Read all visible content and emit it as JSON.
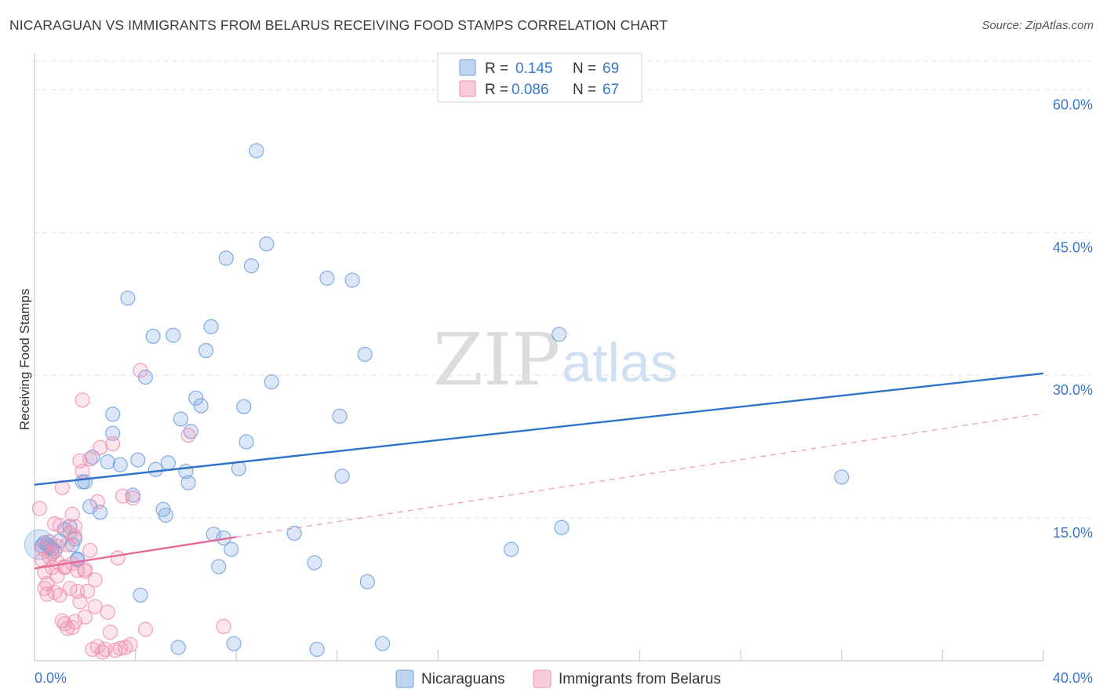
{
  "header": {
    "title": "NICARAGUAN VS IMMIGRANTS FROM BELARUS RECEIVING FOOD STAMPS CORRELATION CHART",
    "source": "Source: ZipAtlas.com"
  },
  "watermark": {
    "zip": "ZIP",
    "atlas": "atlas"
  },
  "legend": {
    "rows": [
      {
        "r_label": "R =",
        "r_value": "0.145",
        "n_label": "N =",
        "n_value": "69",
        "color": "#7ba7e0"
      },
      {
        "r_label": "R =",
        "r_value": "0.086",
        "n_label": "N =",
        "n_value": "67",
        "color": "#f08fb0"
      }
    ]
  },
  "colors": {
    "blue": "#6f9fdc",
    "pink": "#f08fb0",
    "blue_line": "#2f72cc",
    "pink_line": "#e8679a",
    "grid": "#e3e3e3",
    "tick": "#3a78c9"
  },
  "chart_data": {
    "type": "scatter",
    "title": "NICARAGUAN VS IMMIGRANTS FROM BELARUS RECEIVING FOOD STAMPS CORRELATION CHART",
    "xlabel": "",
    "ylabel": "Receiving Food Stamps",
    "xlim": [
      0,
      40
    ],
    "ylim": [
      0,
      63
    ],
    "x_ticks": [
      "0.0%",
      "40.0%"
    ],
    "y_ticks": [
      {
        "value": 15,
        "label": "15.0%"
      },
      {
        "value": 30,
        "label": "30.0%"
      },
      {
        "value": 45,
        "label": "45.0%"
      },
      {
        "value": 60,
        "label": "60.0%"
      }
    ],
    "grid": true,
    "legend_position": "top-center",
    "series": [
      {
        "name": "Nicaraguans",
        "color": "#6f9fdc",
        "trend": {
          "x": [
            0,
            40
          ],
          "y": [
            18.5,
            30.2
          ]
        },
        "points": [
          [
            0.3,
            12.1
          ],
          [
            0.5,
            12.2
          ],
          [
            0.6,
            12.0
          ],
          [
            0.8,
            11.5
          ],
          [
            0.4,
            12.4
          ],
          [
            0.7,
            11.8
          ],
          [
            1.0,
            12.6
          ],
          [
            1.2,
            13.8
          ],
          [
            1.4,
            14.1
          ],
          [
            1.6,
            12.8
          ],
          [
            1.5,
            12.2
          ],
          [
            1.7,
            10.6
          ],
          [
            2.0,
            18.8
          ],
          [
            2.2,
            16.2
          ],
          [
            2.3,
            21.4
          ],
          [
            2.6,
            15.6
          ],
          [
            2.9,
            20.9
          ],
          [
            3.1,
            25.9
          ],
          [
            3.1,
            23.9
          ],
          [
            3.4,
            20.6
          ],
          [
            3.7,
            38.1
          ],
          [
            3.9,
            17.4
          ],
          [
            4.1,
            21.1
          ],
          [
            4.4,
            29.8
          ],
          [
            4.7,
            34.1
          ],
          [
            4.8,
            20.1
          ],
          [
            5.1,
            15.9
          ],
          [
            5.2,
            15.3
          ],
          [
            5.3,
            20.8
          ],
          [
            5.5,
            34.2
          ],
          [
            5.7,
            1.4
          ],
          [
            5.8,
            25.4
          ],
          [
            6.0,
            19.9
          ],
          [
            6.1,
            18.7
          ],
          [
            6.2,
            24.1
          ],
          [
            6.4,
            27.6
          ],
          [
            6.6,
            26.8
          ],
          [
            6.8,
            32.6
          ],
          [
            7.0,
            35.1
          ],
          [
            7.1,
            13.3
          ],
          [
            7.3,
            9.9
          ],
          [
            7.5,
            12.9
          ],
          [
            7.6,
            42.3
          ],
          [
            7.8,
            11.7
          ],
          [
            7.9,
            1.8
          ],
          [
            8.1,
            20.2
          ],
          [
            8.3,
            26.7
          ],
          [
            8.4,
            23.0
          ],
          [
            8.6,
            41.5
          ],
          [
            8.8,
            53.6
          ],
          [
            9.2,
            43.8
          ],
          [
            9.4,
            29.3
          ],
          [
            10.3,
            13.4
          ],
          [
            11.1,
            10.3
          ],
          [
            11.2,
            1.2
          ],
          [
            11.6,
            40.2
          ],
          [
            12.1,
            25.7
          ],
          [
            12.2,
            19.4
          ],
          [
            12.6,
            40.0
          ],
          [
            13.1,
            32.2
          ],
          [
            13.2,
            8.3
          ],
          [
            13.8,
            1.8
          ],
          [
            18.9,
            11.7
          ],
          [
            20.8,
            34.3
          ],
          [
            20.9,
            14.0
          ],
          [
            32.0,
            19.3
          ],
          [
            1.7,
            10.7
          ],
          [
            4.2,
            6.9
          ],
          [
            1.9,
            18.8
          ]
        ]
      },
      {
        "name": "Immigrants from Belarus",
        "color": "#f08fb0",
        "trend": {
          "x": [
            0,
            8
          ],
          "y": [
            9.7,
            13.0
          ]
        },
        "trend_extended": {
          "x": [
            8,
            40
          ],
          "y": [
            13.0,
            26.0
          ]
        },
        "points": [
          [
            0.2,
            16.0
          ],
          [
            0.3,
            11.8
          ],
          [
            0.3,
            10.6
          ],
          [
            0.4,
            9.3
          ],
          [
            0.4,
            7.6
          ],
          [
            0.5,
            7.0
          ],
          [
            0.5,
            8.1
          ],
          [
            0.6,
            10.9
          ],
          [
            0.6,
            12.5
          ],
          [
            0.7,
            9.8
          ],
          [
            0.8,
            14.4
          ],
          [
            0.8,
            7.2
          ],
          [
            0.9,
            8.9
          ],
          [
            0.9,
            10.4
          ],
          [
            1.0,
            6.9
          ],
          [
            1.0,
            14.2
          ],
          [
            1.1,
            4.2
          ],
          [
            1.1,
            18.2
          ],
          [
            1.2,
            3.9
          ],
          [
            1.2,
            9.9
          ],
          [
            1.3,
            12.2
          ],
          [
            1.3,
            3.4
          ],
          [
            1.4,
            7.6
          ],
          [
            1.4,
            13.4
          ],
          [
            1.5,
            15.4
          ],
          [
            1.5,
            3.5
          ],
          [
            1.6,
            14.1
          ],
          [
            1.6,
            4.1
          ],
          [
            1.7,
            9.5
          ],
          [
            1.7,
            7.3
          ],
          [
            1.8,
            21.0
          ],
          [
            1.8,
            6.2
          ],
          [
            1.9,
            19.9
          ],
          [
            1.9,
            27.4
          ],
          [
            2.0,
            9.4
          ],
          [
            2.0,
            4.6
          ],
          [
            2.1,
            7.3
          ],
          [
            2.2,
            11.6
          ],
          [
            2.2,
            21.2
          ],
          [
            2.3,
            1.2
          ],
          [
            2.4,
            5.7
          ],
          [
            2.4,
            8.5
          ],
          [
            2.5,
            1.5
          ],
          [
            2.5,
            16.7
          ],
          [
            2.6,
            22.4
          ],
          [
            2.7,
            0.9
          ],
          [
            2.8,
            1.2
          ],
          [
            2.9,
            5.1
          ],
          [
            3.0,
            3.0
          ],
          [
            3.1,
            22.8
          ],
          [
            3.2,
            1.1
          ],
          [
            3.3,
            10.8
          ],
          [
            3.4,
            1.3
          ],
          [
            3.5,
            17.3
          ],
          [
            3.6,
            1.4
          ],
          [
            3.8,
            1.7
          ],
          [
            3.9,
            17.1
          ],
          [
            4.2,
            30.5
          ],
          [
            4.4,
            3.3
          ],
          [
            6.1,
            23.7
          ],
          [
            7.5,
            3.6
          ],
          [
            1.6,
            13.1
          ],
          [
            0.9,
            12.0
          ],
          [
            1.2,
            9.8
          ],
          [
            2.0,
            9.6
          ],
          [
            0.7,
            11.3
          ],
          [
            1.5,
            10.2
          ]
        ]
      }
    ]
  },
  "bottom_legend": {
    "items": [
      {
        "label": "Nicaraguans",
        "color": "#6f9fdc"
      },
      {
        "label": "Immigrants from Belarus",
        "color": "#f08fb0"
      }
    ]
  }
}
